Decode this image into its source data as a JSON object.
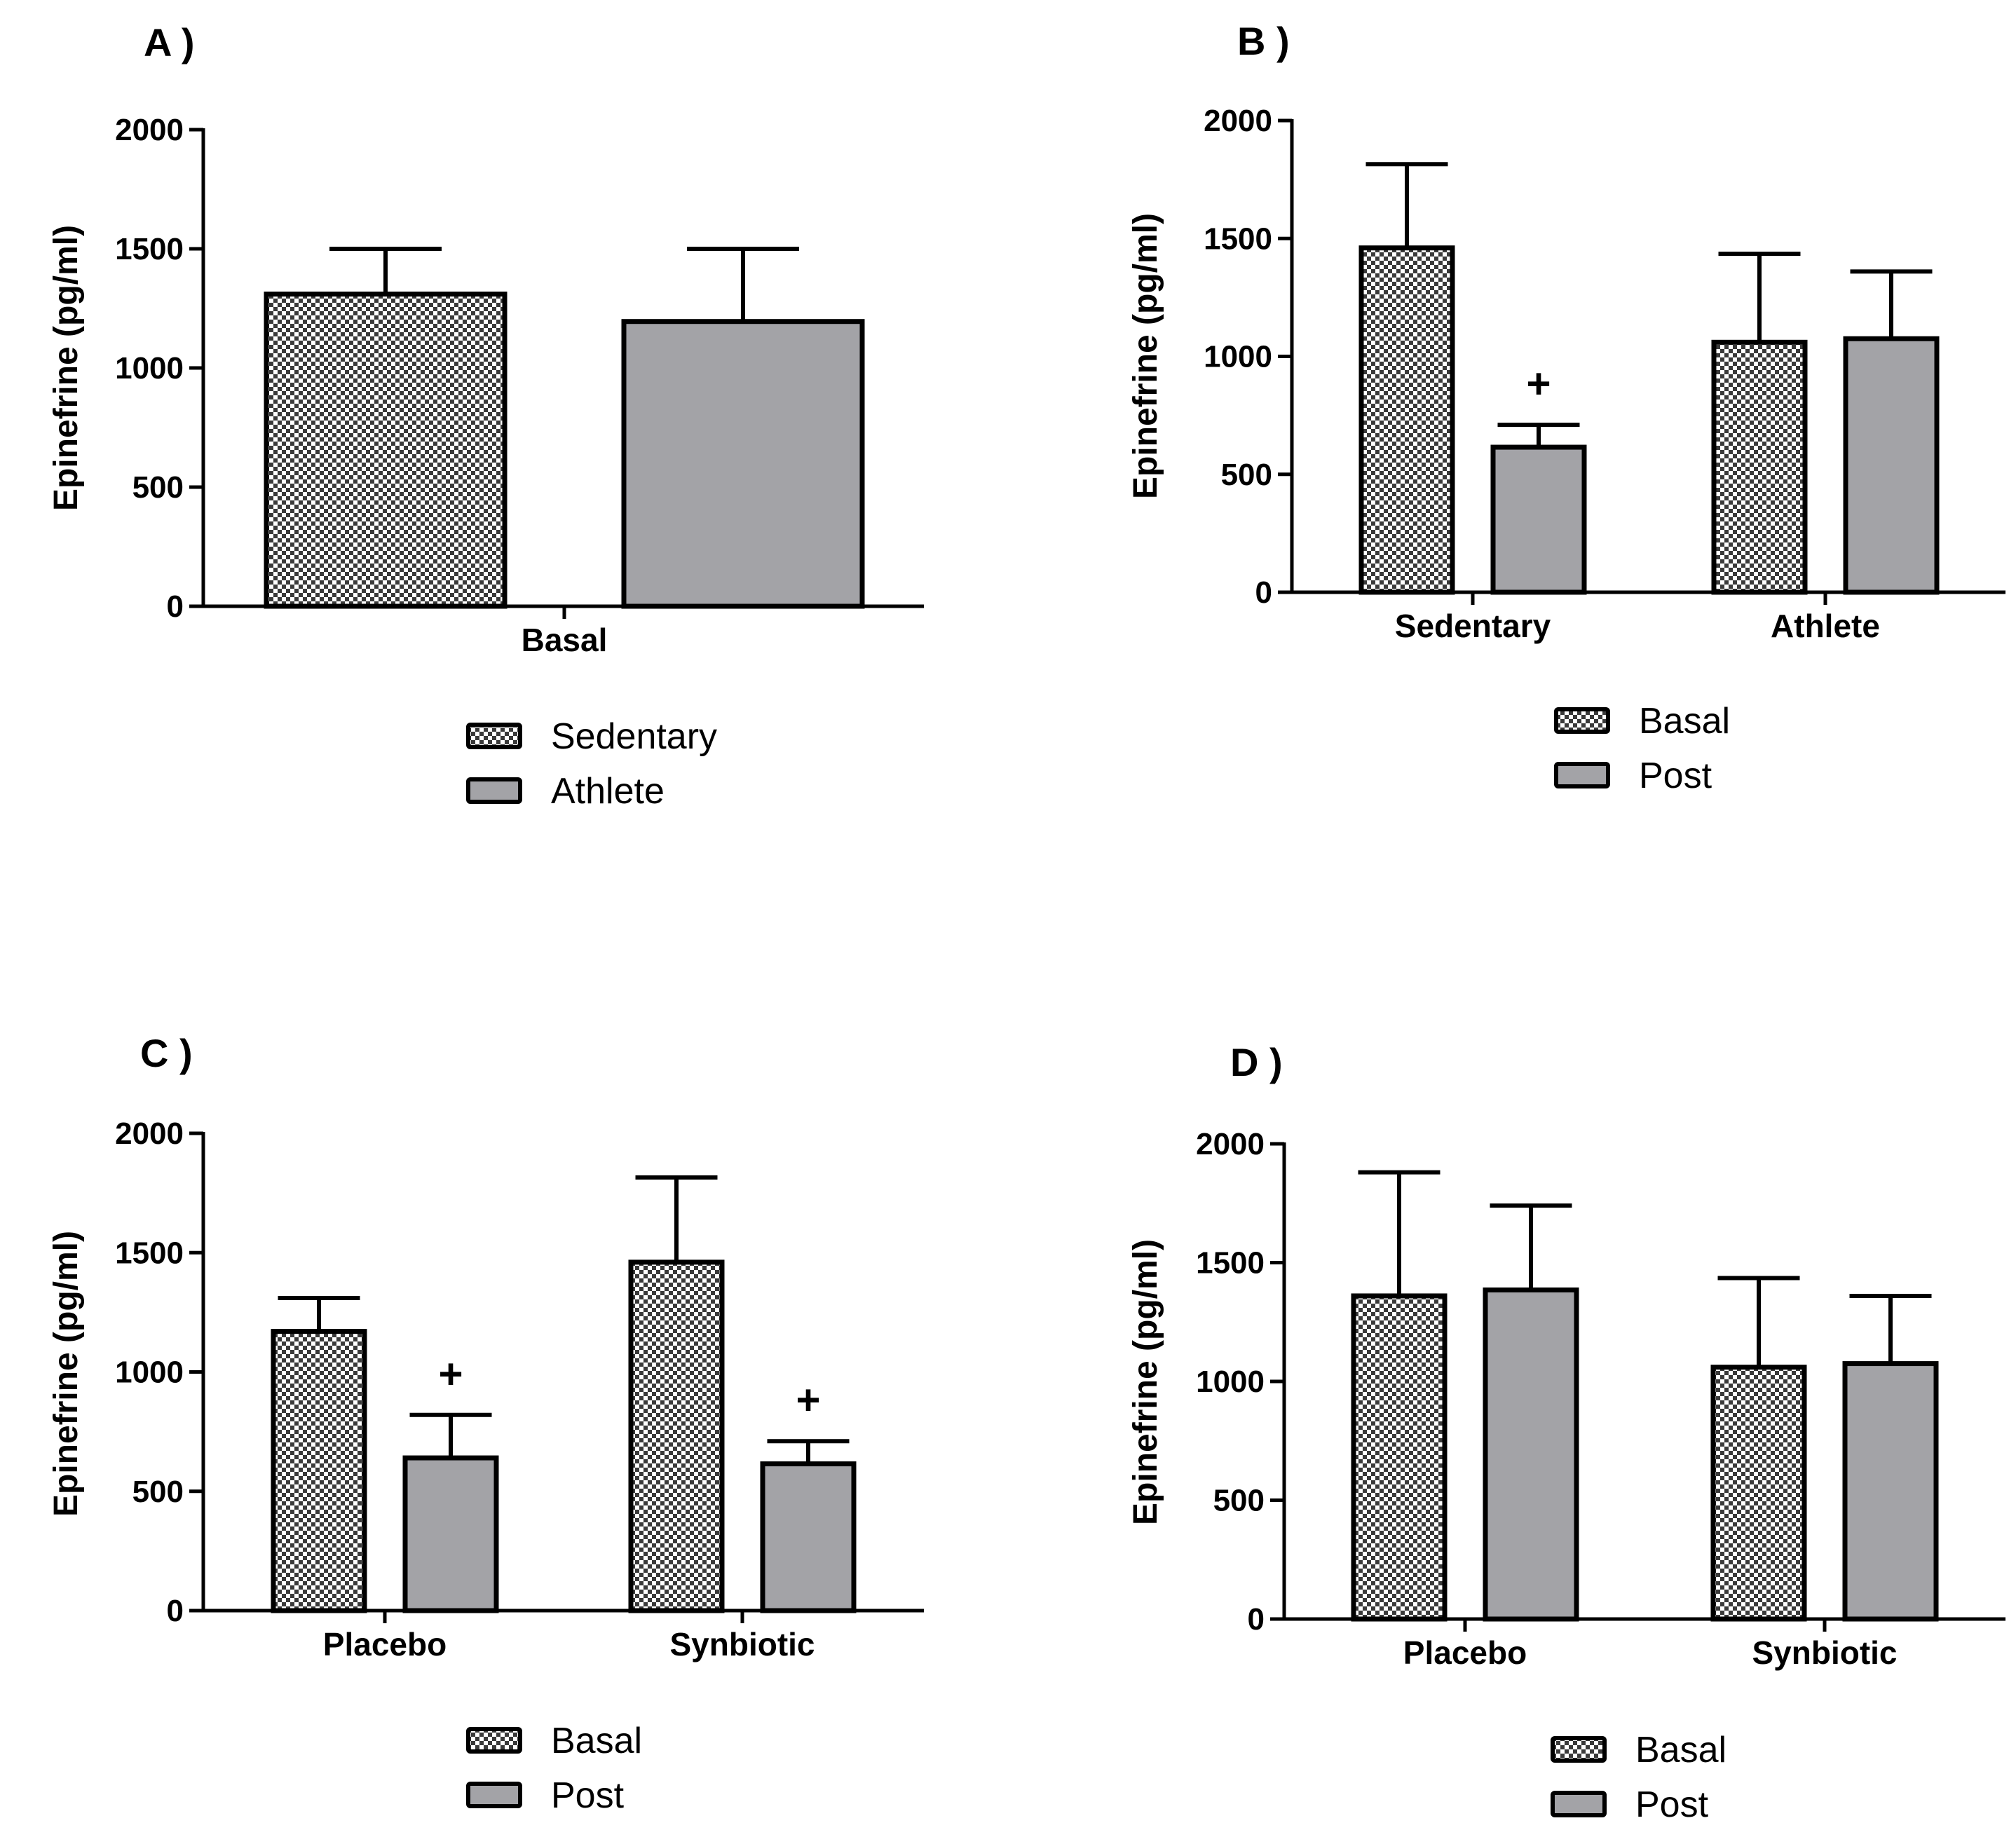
{
  "colors": {
    "axis": "#000000",
    "post_fill": "#a3a3a7",
    "checker_light": "#ffffff",
    "checker_dark": "#3a3a3a"
  },
  "chart_data": [
    {
      "panel": "A )",
      "type": "bar",
      "title": "",
      "xlabel": "",
      "ylabel": "Epinefrine (pg/ml)",
      "ylim": [
        0,
        2000
      ],
      "yticks": [
        "0",
        "500",
        "1000",
        "1500",
        "2000"
      ],
      "categories": [
        "Basal"
      ],
      "series": [
        {
          "name": "Sedentary",
          "pattern": "checker",
          "values": [
            1310
          ],
          "errors": [
            190
          ]
        },
        {
          "name": "Athlete",
          "pattern": "gray",
          "values": [
            1195
          ],
          "errors": [
            305
          ]
        }
      ],
      "significance": [],
      "legend": [
        "Sedentary",
        "Athlete"
      ],
      "legend_position": "below"
    },
    {
      "panel": "B )",
      "type": "bar",
      "title": "",
      "xlabel": "",
      "ylabel": "Epinefrine (pg/ml)",
      "ylim": [
        0,
        2000
      ],
      "yticks": [
        "0",
        "500",
        "1000",
        "1500",
        "2000"
      ],
      "categories": [
        "Sedentary",
        "Athlete"
      ],
      "series": [
        {
          "name": "Basal",
          "pattern": "checker",
          "values": [
            1460,
            1060
          ],
          "errors": [
            355,
            375
          ]
        },
        {
          "name": "Post",
          "pattern": "gray",
          "values": [
            615,
            1075
          ],
          "errors": [
            95,
            285
          ]
        }
      ],
      "significance": [
        {
          "category": 0,
          "series": 1,
          "mark": "+"
        }
      ],
      "legend": [
        "Basal",
        "Post"
      ],
      "legend_position": "below"
    },
    {
      "panel": "C )",
      "type": "bar",
      "title": "",
      "xlabel": "",
      "ylabel": "Epinefrine (pg/ml)",
      "ylim": [
        0,
        2000
      ],
      "yticks": [
        "0",
        "500",
        "1000",
        "1500",
        "2000"
      ],
      "categories": [
        "Placebo",
        "Synbiotic"
      ],
      "series": [
        {
          "name": "Basal",
          "pattern": "checker",
          "values": [
            1170,
            1460
          ],
          "errors": [
            140,
            355
          ]
        },
        {
          "name": "Post",
          "pattern": "gray",
          "values": [
            640,
            615
          ],
          "errors": [
            180,
            95
          ]
        }
      ],
      "significance": [
        {
          "category": 0,
          "series": 1,
          "mark": "+"
        },
        {
          "category": 1,
          "series": 1,
          "mark": "+"
        }
      ],
      "legend": [
        "Basal",
        "Post"
      ],
      "legend_position": "below"
    },
    {
      "panel": "D )",
      "type": "bar",
      "title": "",
      "xlabel": "",
      "ylabel": "Epinefrine (pg/ml)",
      "ylim": [
        0,
        2000
      ],
      "yticks": [
        "0",
        "500",
        "1000",
        "1500",
        "2000"
      ],
      "categories": [
        "Placebo",
        "Synbiotic"
      ],
      "series": [
        {
          "name": "Basal",
          "pattern": "checker",
          "values": [
            1360,
            1060
          ],
          "errors": [
            520,
            375
          ]
        },
        {
          "name": "Post",
          "pattern": "gray",
          "values": [
            1385,
            1075
          ],
          "errors": [
            355,
            285
          ]
        }
      ],
      "significance": [],
      "legend": [
        "Basal",
        "Post"
      ],
      "legend_position": "below"
    }
  ]
}
